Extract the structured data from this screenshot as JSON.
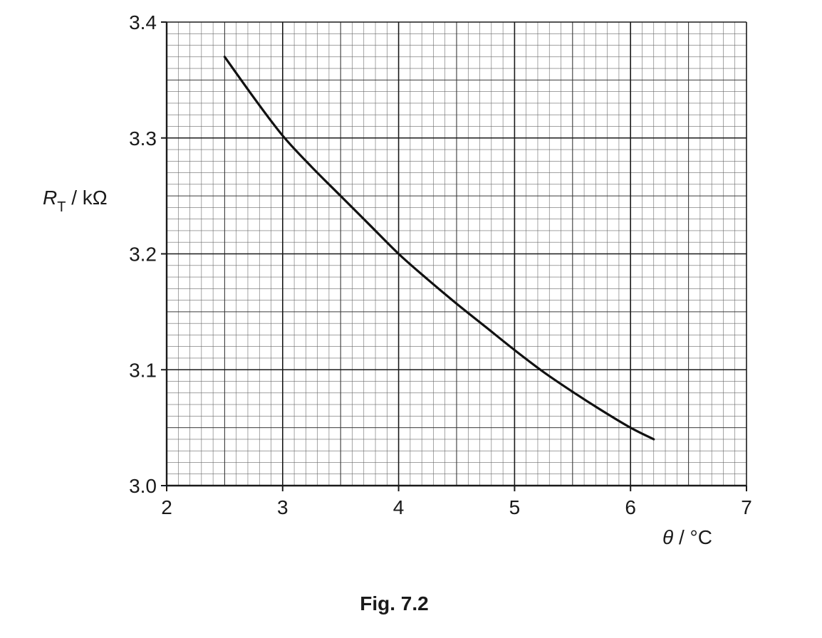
{
  "chart_data": {
    "type": "line",
    "title": "",
    "caption": "Fig. 7.2",
    "xlabel": {
      "symbol": "θ",
      "unit": "°C"
    },
    "ylabel": {
      "symbol": "R",
      "subscript": "T",
      "unit": "kΩ"
    },
    "xlim": [
      2,
      7
    ],
    "ylim": [
      3.0,
      3.4
    ],
    "x_ticks": [
      "2",
      "3",
      "4",
      "5",
      "6",
      "7"
    ],
    "y_ticks": [
      "3.0",
      "3.1",
      "3.2",
      "3.3",
      "3.4"
    ],
    "x_tick_values": [
      2,
      3,
      4,
      5,
      6,
      7
    ],
    "y_tick_values": [
      3.0,
      3.1,
      3.2,
      3.3,
      3.4
    ],
    "grid": {
      "major_x": 1,
      "major_y": 0.1,
      "minor_x": 0.1,
      "minor_y": 0.01,
      "mid_x": 0.5,
      "mid_y": 0.05
    },
    "legend": "none",
    "series": [
      {
        "x": [
          2.5,
          2.75,
          3.0,
          3.25,
          3.5,
          3.75,
          4.0,
          4.25,
          4.5,
          4.75,
          5.0,
          5.25,
          5.5,
          5.75,
          6.0,
          6.2
        ],
        "y": [
          3.37,
          3.335,
          3.302,
          3.275,
          3.25,
          3.225,
          3.2,
          3.178,
          3.157,
          3.137,
          3.117,
          3.098,
          3.081,
          3.065,
          3.05,
          3.04
        ]
      }
    ]
  }
}
